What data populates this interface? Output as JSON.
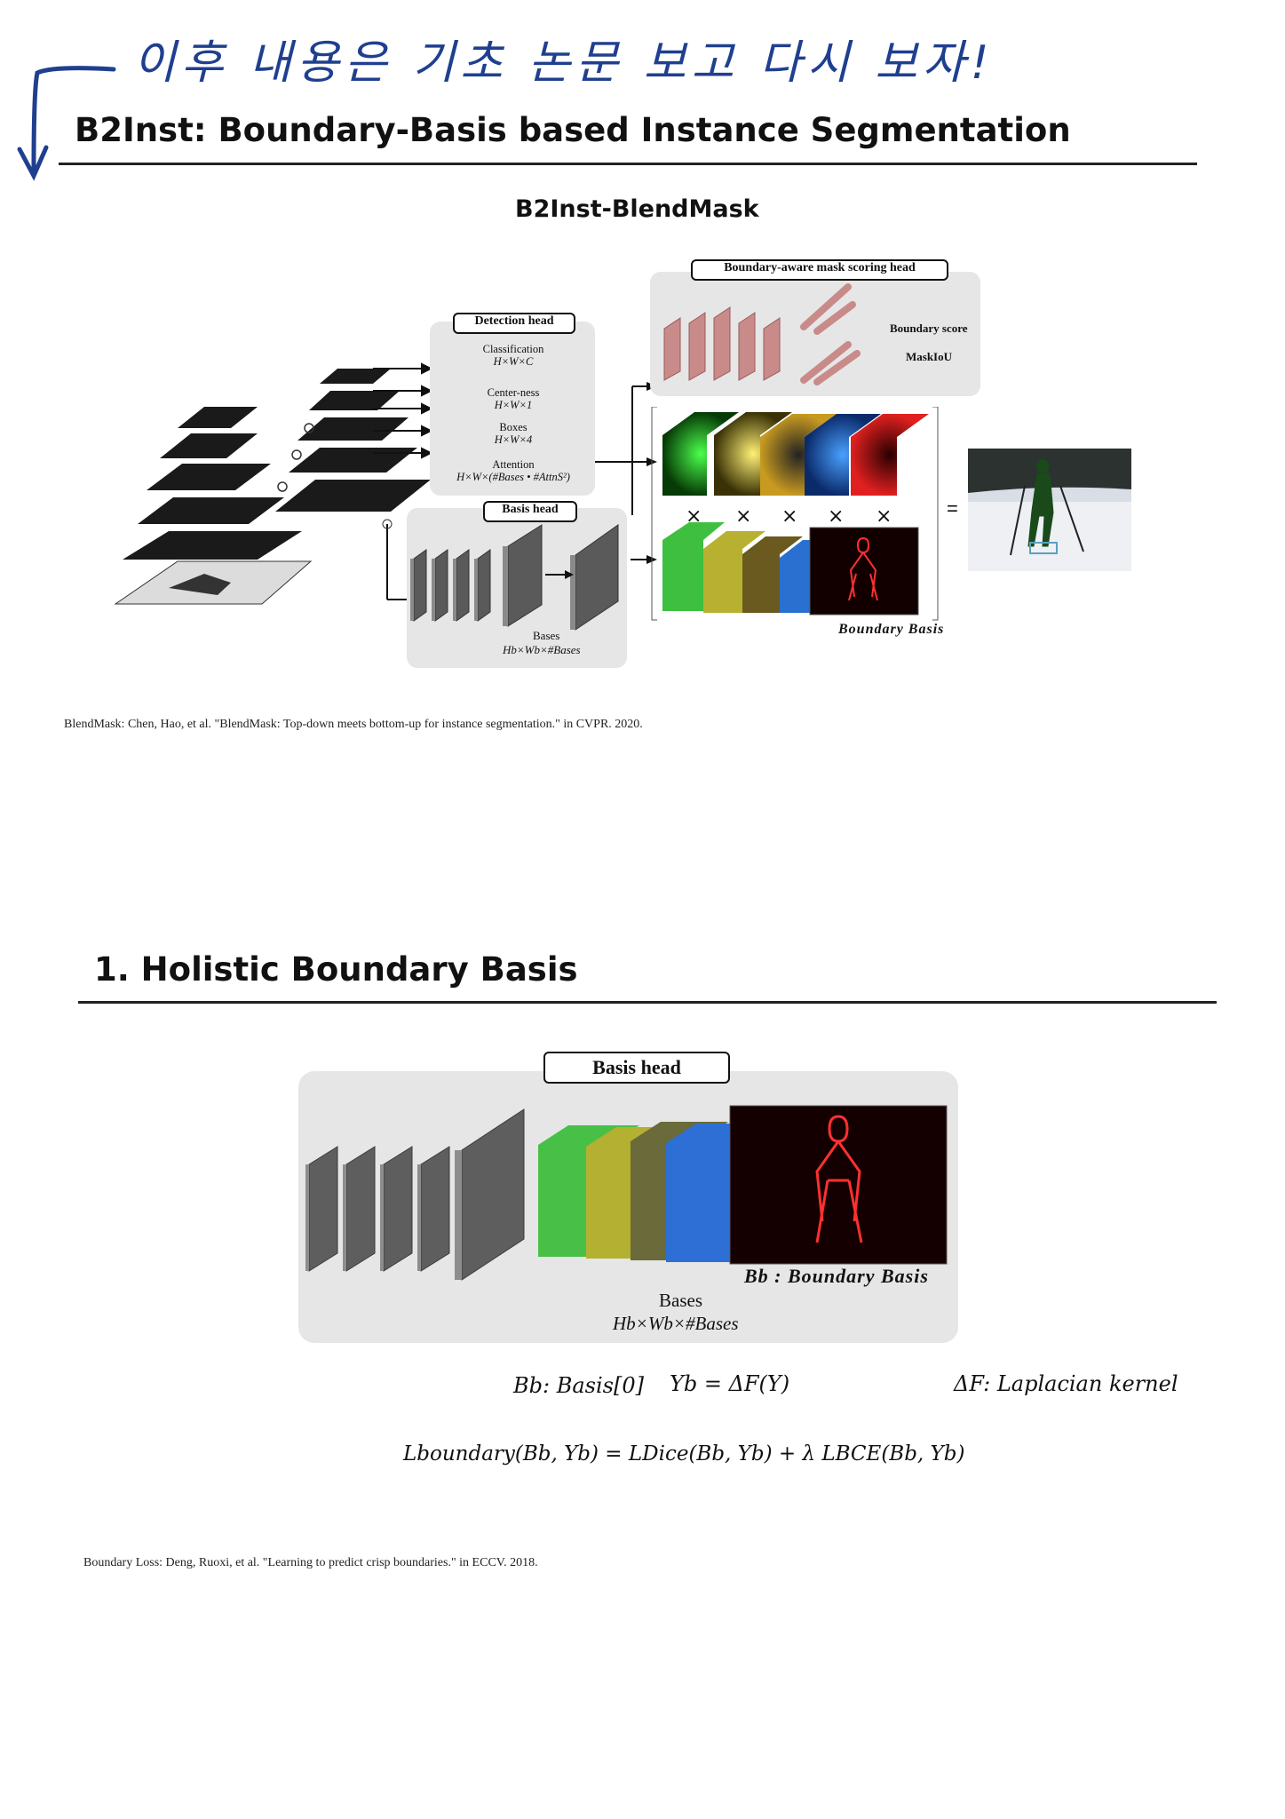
{
  "handwritten_note": "이후 내용은 기초 논문 보고 다시 보자!",
  "slide1": {
    "title": "B2Inst: Boundary-Basis based Instance Segmentation",
    "subtitle": "B2Inst-BlendMask",
    "scoring_head": {
      "label": "Boundary-aware mask scoring head",
      "outputs": [
        "Boundary score",
        "MaskIoU"
      ]
    },
    "detection_head": {
      "label": "Detection head",
      "items": [
        {
          "name": "Classification",
          "shape": "H×W×C"
        },
        {
          "name": "Center-ness",
          "shape": "H×W×1"
        },
        {
          "name": "Boxes",
          "shape": "H×W×4"
        },
        {
          "name": "Attention",
          "shape": "H×W×(#Bases • #AttnS²)"
        }
      ]
    },
    "basis_head": {
      "label": "Basis head",
      "bases_label": "Bases",
      "bases_shape": "Hb×Wb×#Bases"
    },
    "boundary_basis_label": "Boundary Basis",
    "footnote": "BlendMask: Chen, Hao, et al. \"BlendMask: Top-down meets bottom-up for instance segmentation.\" in CVPR. 2020."
  },
  "slide2": {
    "title": "1. Holistic Boundary Basis",
    "basis_head_label": "Basis head",
    "bb_label": "Bb : Boundary Basis",
    "bases_label": "Bases",
    "bases_shape": "Hb×Wb×#Bases",
    "eq1a": "Bb: Basis[0]",
    "eq1b": "Yb = ΔF(Y)",
    "eq1c": "ΔF: Laplacian kernel",
    "eq2": "Lboundary(Bb, Yb) = LDice(Bb, Yb) + λ LBCE(Bb, Yb)",
    "footnote": "Boundary Loss: Deng, Ruoxi, et al. \"Learning to predict crisp boundaries.\" in ECCV. 2018."
  }
}
